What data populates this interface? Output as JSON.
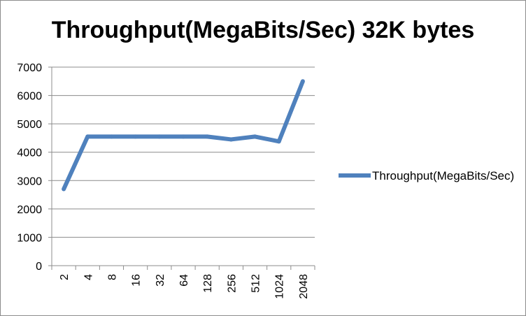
{
  "chart_data": {
    "type": "line",
    "title": "Throughput(MegaBits/Sec) 32K bytes",
    "xlabel": "",
    "ylabel": "",
    "categories": [
      "2",
      "4",
      "8",
      "16",
      "32",
      "64",
      "128",
      "256",
      "512",
      "1024",
      "2048"
    ],
    "series": [
      {
        "name": "Throughput(MegaBits/Sec)",
        "values": [
          2700,
          4550,
          4550,
          4550,
          4550,
          4550,
          4550,
          4450,
          4550,
          4380,
          6500
        ],
        "color": "#4f81bd"
      }
    ],
    "ylim": [
      0,
      7000
    ],
    "yticks": [
      "0",
      "1000",
      "2000",
      "3000",
      "4000",
      "5000",
      "6000",
      "7000"
    ],
    "grid": "horizontal",
    "legend_position": "right"
  }
}
